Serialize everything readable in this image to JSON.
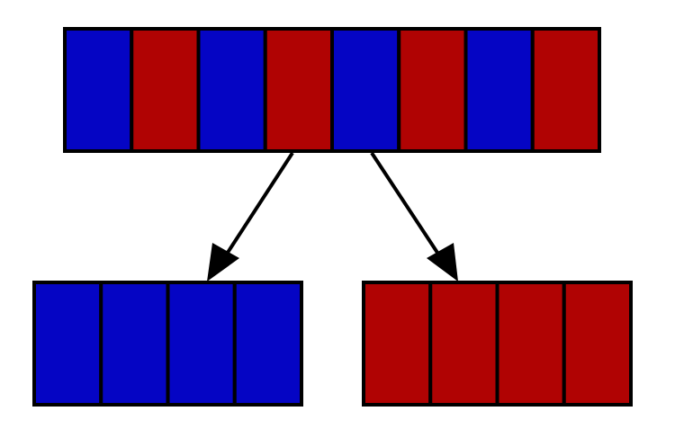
{
  "colors": {
    "blue": "#0505c4",
    "red": "#b00303",
    "stroke": "#000000",
    "background": "#ffffff"
  },
  "source_array": {
    "cells": [
      "blue",
      "red",
      "blue",
      "red",
      "blue",
      "red",
      "blue",
      "red"
    ]
  },
  "left_partition": {
    "cells": [
      "blue",
      "blue",
      "blue",
      "blue"
    ]
  },
  "right_partition": {
    "cells": [
      "red",
      "red",
      "red",
      "red"
    ]
  }
}
